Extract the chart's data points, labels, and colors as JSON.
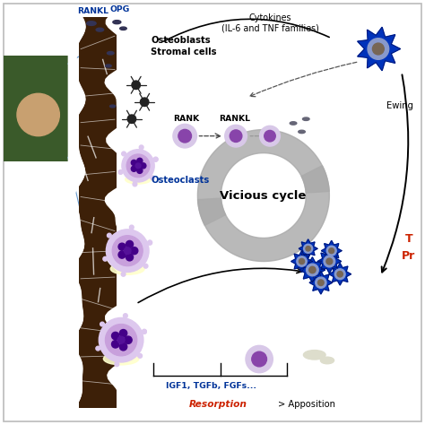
{
  "background_color": "#ffffff",
  "border_color": "#bbbbbb",
  "fig_width": 4.74,
  "fig_height": 4.74,
  "dpi": 100,
  "labels": {
    "rankl_top": "RANKL",
    "opg": "OPG",
    "osteoblasts": "Osteoblasts\nStromal cells",
    "cytokines": "Cytokines\n(IL-6 and TNF families)",
    "rank": "RANK",
    "rankl_mid": "RANKL",
    "ewing": "Ewing",
    "vicious_cycle": "Vicious cycle",
    "osteoclasts": "Osteoclasts",
    "igf1": "IGF1, TGFb, FGFs...",
    "resorption": "Resorption",
    "apposition": "> Apposition",
    "tumor_t": "T",
    "tumor_pr": "Pr"
  },
  "label_colors": {
    "rankl_top": "#003399",
    "opg": "#003399",
    "osteoblasts": "#000000",
    "cytokines": "#000000",
    "rank": "#000000",
    "rankl_mid": "#000000",
    "ewing": "#000000",
    "vicious_cycle": "#000000",
    "osteoclasts": "#003399",
    "igf1": "#003399",
    "resorption": "#cc2200",
    "apposition": "#000000",
    "tumor": "#cc2200"
  },
  "bone_color": "#3d2008",
  "yellow_resorption": "#ffffcc",
  "cell_blue": "#0033bb",
  "arrow_gray": "#aaaaaa",
  "arrow_dark": "#333333"
}
